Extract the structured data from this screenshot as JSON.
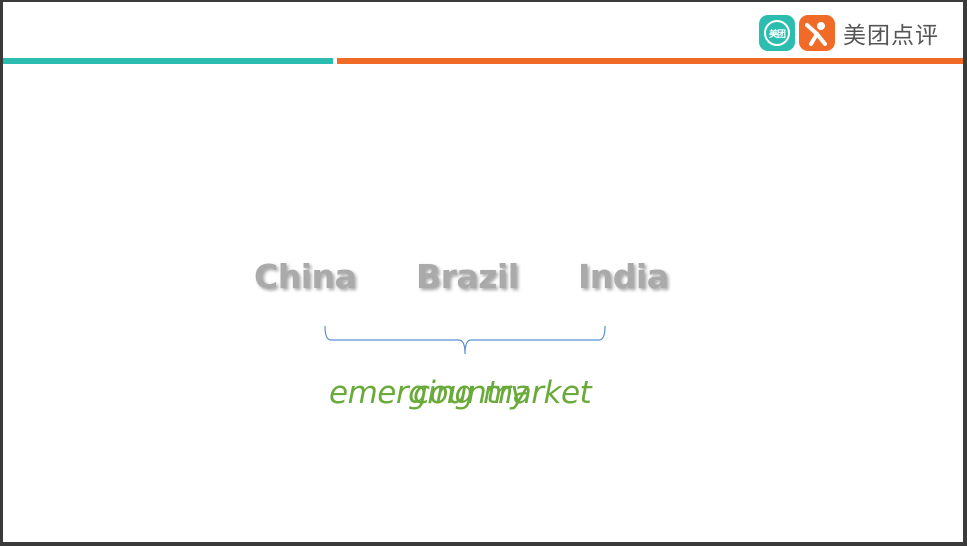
{
  "colors": {
    "teal": "#2bbdb0",
    "orange": "#f06a28",
    "country_text": "#aaaaaa",
    "label_green": "#6aaa3a",
    "brace_blue": "#5b8fd6"
  },
  "logo": {
    "badge_text": "美团",
    "wordmark": "美团点评",
    "icons": [
      "meituan-badge-icon",
      "dianping-person-icon"
    ]
  },
  "countries": [
    "China",
    "Brazil",
    "India"
  ],
  "overlapping_labels": {
    "first": "emerging market",
    "second": "country"
  }
}
